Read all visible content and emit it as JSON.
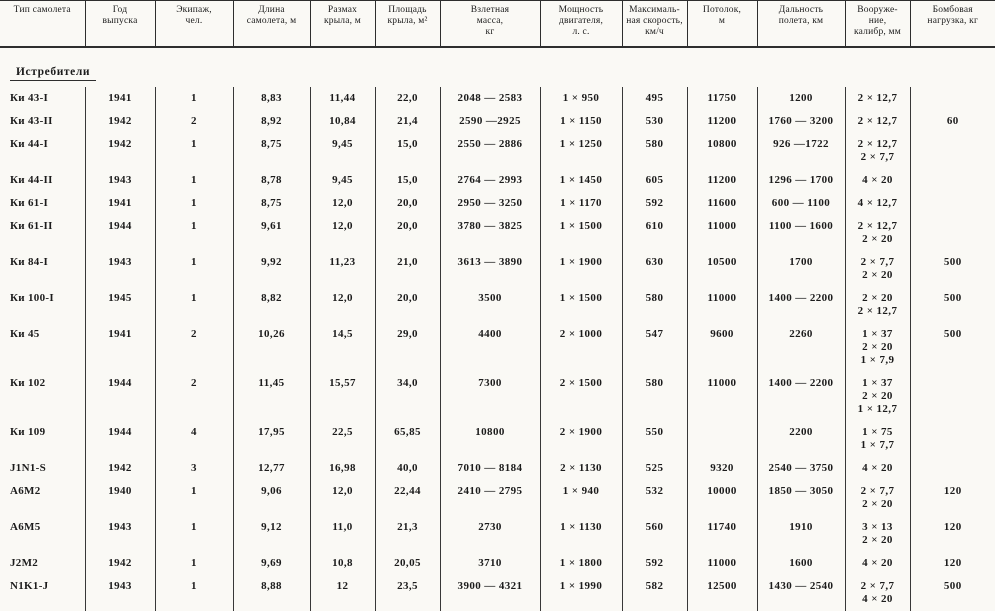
{
  "page": {
    "background": "#faf9f5",
    "ink_color": "#1c1c1c",
    "section_title": "Истребители"
  },
  "table": {
    "columns": [
      "Тип самолета",
      "Год\nвыпуска",
      "Экипаж,\nчел.",
      "Длина\nсамолета, м",
      "Размах\nкрыла, м",
      "Площадь\nкрыла, м²",
      "Взлетная\nмасса,\nкг",
      "Мощность\nдвигателя,\nл. с.",
      "Максималь-\nная скорость,\nкм/ч",
      "Потолок,\nм",
      "Дальность\nполета, км",
      "Вооруже-\nние,\nкалибр, мм",
      "Бомбовая\nнагрузка, кг"
    ],
    "rows": [
      {
        "type": "Ки 43-I",
        "year": "1941",
        "crew": "1",
        "length": "8,83",
        "span": "11,44",
        "area": "22,0",
        "mass": "2048 — 2583",
        "power": "1 × 950",
        "speed": "495",
        "ceiling": "11750",
        "range": "1200",
        "armament": [
          "2 × 12,7"
        ],
        "bombs": ""
      },
      {
        "type": "Ки 43-II",
        "year": "1942",
        "crew": "2",
        "length": "8,92",
        "span": "10,84",
        "area": "21,4",
        "mass": "2590 —2925",
        "power": "1 × 1150",
        "speed": "530",
        "ceiling": "11200",
        "range": "1760 — 3200",
        "armament": [
          "2 × 12,7"
        ],
        "bombs": "60"
      },
      {
        "type": "Ки 44-I",
        "year": "1942",
        "crew": "1",
        "length": "8,75",
        "span": "9,45",
        "area": "15,0",
        "mass": "2550 — 2886",
        "power": "1 × 1250",
        "speed": "580",
        "ceiling": "10800",
        "range": "926 —1722",
        "armament": [
          "2 × 12,7",
          "2 × 7,7"
        ],
        "bombs": ""
      },
      {
        "type": "Ки 44-II",
        "year": "1943",
        "crew": "1",
        "length": "8,78",
        "span": "9,45",
        "area": "15,0",
        "mass": "2764 — 2993",
        "power": "1 × 1450",
        "speed": "605",
        "ceiling": "11200",
        "range": "1296 — 1700",
        "armament": [
          "4 × 20"
        ],
        "bombs": ""
      },
      {
        "type": "Ки 61-I",
        "year": "1941",
        "crew": "1",
        "length": "8,75",
        "span": "12,0",
        "area": "20,0",
        "mass": "2950 — 3250",
        "power": "1 × 1170",
        "speed": "592",
        "ceiling": "11600",
        "range": "600 — 1100",
        "armament": [
          "4 × 12,7"
        ],
        "bombs": ""
      },
      {
        "type": "Ки 61-II",
        "year": "1944",
        "crew": "1",
        "length": "9,61",
        "span": "12,0",
        "area": "20,0",
        "mass": "3780 — 3825",
        "power": "1 × 1500",
        "speed": "610",
        "ceiling": "11000",
        "range": "1100 — 1600",
        "armament": [
          "2 × 12,7",
          "2 × 20"
        ],
        "bombs": ""
      },
      {
        "type": "Ки 84-I",
        "year": "1943",
        "crew": "1",
        "length": "9,92",
        "span": "11,23",
        "area": "21,0",
        "mass": "3613 — 3890",
        "power": "1 × 1900",
        "speed": "630",
        "ceiling": "10500",
        "range": "1700",
        "armament": [
          "2 × 7,7",
          "2 × 20"
        ],
        "bombs": "500"
      },
      {
        "type": "Ки 100-I",
        "year": "1945",
        "crew": "1",
        "length": "8,82",
        "span": "12,0",
        "area": "20,0",
        "mass": "3500",
        "power": "1 × 1500",
        "speed": "580",
        "ceiling": "11000",
        "range": "1400 — 2200",
        "armament": [
          "2 × 20",
          "2 × 12,7"
        ],
        "bombs": "500"
      },
      {
        "type": "Ки 45",
        "year": "1941",
        "crew": "2",
        "length": "10,26",
        "span": "14,5",
        "area": "29,0",
        "mass": "4400",
        "power": "2 × 1000",
        "speed": "547",
        "ceiling": "9600",
        "range": "2260",
        "armament": [
          "1 × 37",
          "2 × 20",
          "1 × 7,9"
        ],
        "bombs": "500"
      },
      {
        "type": "Ки 102",
        "year": "1944",
        "crew": "2",
        "length": "11,45",
        "span": "15,57",
        "area": "34,0",
        "mass": "7300",
        "power": "2 × 1500",
        "speed": "580",
        "ceiling": "11000",
        "range": "1400 — 2200",
        "armament": [
          "1 × 37",
          "2 × 20",
          "1 × 12,7"
        ],
        "bombs": ""
      },
      {
        "type": "Ки 109",
        "year": "1944",
        "crew": "4",
        "length": "17,95",
        "span": "22,5",
        "area": "65,85",
        "mass": "10800",
        "power": "2 × 1900",
        "speed": "550",
        "ceiling": "",
        "range": "2200",
        "armament": [
          "1 × 75",
          "1 × 7,7"
        ],
        "bombs": ""
      },
      {
        "type": "J1N1-S",
        "year": "1942",
        "crew": "3",
        "length": "12,77",
        "span": "16,98",
        "area": "40,0",
        "mass": "7010 — 8184",
        "power": "2 × 1130",
        "speed": "525",
        "ceiling": "9320",
        "range": "2540 — 3750",
        "armament": [
          "4 × 20"
        ],
        "bombs": ""
      },
      {
        "type": "A6M2",
        "year": "1940",
        "crew": "1",
        "length": "9,06",
        "span": "12,0",
        "area": "22,44",
        "mass": "2410 — 2795",
        "power": "1 × 940",
        "speed": "532",
        "ceiling": "10000",
        "range": "1850 — 3050",
        "armament": [
          "2 × 7,7",
          "2 × 20"
        ],
        "bombs": "120"
      },
      {
        "type": "A6M5",
        "year": "1943",
        "crew": "1",
        "length": "9,12",
        "span": "11,0",
        "area": "21,3",
        "mass": "2730",
        "power": "1 × 1130",
        "speed": "560",
        "ceiling": "11740",
        "range": "1910",
        "armament": [
          "3 × 13",
          "2 × 20"
        ],
        "bombs": "120"
      },
      {
        "type": "J2M2",
        "year": "1942",
        "crew": "1",
        "length": "9,69",
        "span": "10,8",
        "area": "20,05",
        "mass": "3710",
        "power": "1 × 1800",
        "speed": "592",
        "ceiling": "11000",
        "range": "1600",
        "armament": [
          "4 × 20"
        ],
        "bombs": "120"
      },
      {
        "type": "N1K1-J",
        "year": "1943",
        "crew": "1",
        "length": "8,88",
        "span": "12",
        "area": "23,5",
        "mass": "3900 — 4321",
        "power": "1 × 1990",
        "speed": "582",
        "ceiling": "12500",
        "range": "1430 — 2540",
        "armament": [
          "2 × 7,7",
          "4 × 20"
        ],
        "bombs": "500"
      }
    ]
  }
}
